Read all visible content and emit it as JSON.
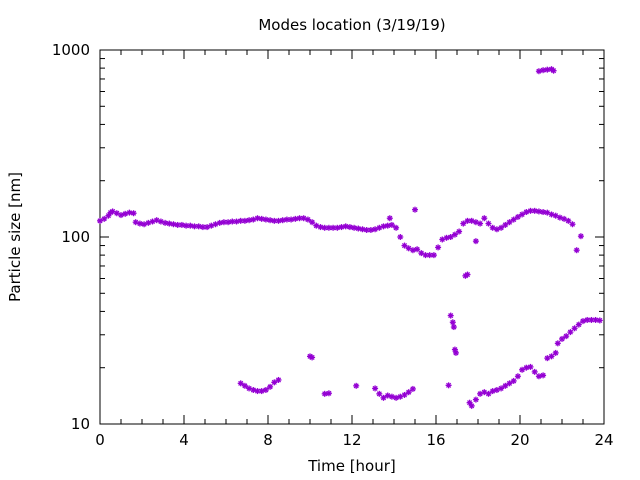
{
  "chart_data": {
    "type": "scatter",
    "title": "Modes location (3/19/19)",
    "xlabel": "Time [hour]",
    "ylabel": "Particle size [nm]",
    "xlim": [
      0,
      24
    ],
    "ylim": [
      10,
      1000
    ],
    "yscale": "log",
    "grid": false,
    "legend": "none",
    "marker_color": "#9400d3",
    "xticks": [
      {
        "v": 0,
        "label": "0"
      },
      {
        "v": 4,
        "label": "4"
      },
      {
        "v": 8,
        "label": "8"
      },
      {
        "v": 12,
        "label": "12"
      },
      {
        "v": 16,
        "label": "16"
      },
      {
        "v": 20,
        "label": "20"
      },
      {
        "v": 24,
        "label": "24"
      }
    ],
    "yticks": [
      {
        "v": 10,
        "label": "10"
      },
      {
        "v": 100,
        "label": "100"
      },
      {
        "v": 1000,
        "label": "1000"
      }
    ],
    "series": [
      {
        "points": [
          [
            0.0,
            122
          ],
          [
            0.2,
            125
          ],
          [
            0.4,
            130
          ],
          [
            0.5,
            135
          ],
          [
            0.6,
            137
          ],
          [
            0.8,
            134
          ],
          [
            1.0,
            131
          ],
          [
            1.2,
            133
          ],
          [
            1.4,
            135
          ],
          [
            1.6,
            134
          ],
          [
            1.7,
            120
          ],
          [
            1.9,
            118
          ],
          [
            2.1,
            117
          ],
          [
            2.3,
            119
          ],
          [
            2.5,
            121
          ],
          [
            2.7,
            123
          ],
          [
            2.9,
            121
          ],
          [
            3.1,
            119
          ],
          [
            3.3,
            118
          ],
          [
            3.5,
            117
          ],
          [
            3.7,
            116
          ],
          [
            3.9,
            116
          ],
          [
            4.1,
            115
          ],
          [
            4.3,
            115
          ],
          [
            4.5,
            114
          ],
          [
            4.7,
            114
          ],
          [
            4.9,
            113
          ],
          [
            5.1,
            113
          ],
          [
            5.3,
            115
          ],
          [
            5.5,
            117
          ],
          [
            5.7,
            119
          ],
          [
            5.9,
            120
          ],
          [
            6.1,
            120
          ],
          [
            6.3,
            121
          ],
          [
            6.5,
            121
          ],
          [
            6.7,
            122
          ],
          [
            6.9,
            122
          ],
          [
            7.1,
            123
          ],
          [
            7.3,
            124
          ],
          [
            7.5,
            126
          ],
          [
            7.7,
            125
          ],
          [
            7.9,
            124
          ],
          [
            8.1,
            123
          ],
          [
            8.3,
            122
          ],
          [
            8.5,
            122
          ],
          [
            8.7,
            123
          ],
          [
            8.9,
            124
          ],
          [
            9.1,
            124
          ],
          [
            9.3,
            125
          ],
          [
            9.5,
            126
          ],
          [
            9.7,
            126
          ],
          [
            9.9,
            124
          ],
          [
            10.1,
            120
          ],
          [
            10.3,
            115
          ],
          [
            10.5,
            113
          ],
          [
            10.7,
            112
          ],
          [
            10.9,
            112
          ],
          [
            11.1,
            112
          ],
          [
            11.3,
            112
          ],
          [
            11.5,
            113
          ],
          [
            11.7,
            114
          ],
          [
            11.9,
            113
          ],
          [
            12.1,
            112
          ],
          [
            12.3,
            111
          ],
          [
            12.5,
            110
          ],
          [
            12.7,
            109
          ],
          [
            12.9,
            109
          ],
          [
            13.1,
            110
          ],
          [
            13.3,
            112
          ],
          [
            13.5,
            114
          ],
          [
            13.7,
            115
          ],
          [
            13.8,
            126
          ],
          [
            13.9,
            116
          ],
          [
            14.1,
            112
          ],
          [
            14.3,
            100
          ],
          [
            14.5,
            90
          ],
          [
            14.7,
            87
          ],
          [
            14.9,
            85
          ],
          [
            15.0,
            140
          ],
          [
            15.1,
            86
          ],
          [
            15.3,
            82
          ],
          [
            15.5,
            80
          ],
          [
            15.7,
            80
          ],
          [
            15.9,
            80
          ],
          [
            16.1,
            88
          ],
          [
            16.3,
            97
          ],
          [
            16.5,
            99
          ],
          [
            16.7,
            100
          ],
          [
            16.9,
            103
          ],
          [
            17.1,
            107
          ],
          [
            17.3,
            118
          ],
          [
            17.5,
            122
          ],
          [
            17.7,
            122
          ],
          [
            17.9,
            120
          ],
          [
            18.1,
            118
          ],
          [
            18.3,
            126
          ],
          [
            18.5,
            118
          ],
          [
            18.7,
            112
          ],
          [
            18.9,
            110
          ],
          [
            19.1,
            112
          ],
          [
            19.3,
            116
          ],
          [
            19.5,
            120
          ],
          [
            19.7,
            124
          ],
          [
            19.9,
            128
          ],
          [
            20.1,
            132
          ],
          [
            20.3,
            136
          ],
          [
            20.5,
            138
          ],
          [
            20.7,
            138
          ],
          [
            20.9,
            137
          ],
          [
            21.1,
            136
          ],
          [
            21.3,
            135
          ],
          [
            21.5,
            132
          ],
          [
            21.7,
            130
          ],
          [
            21.9,
            127
          ],
          [
            22.1,
            125
          ],
          [
            22.3,
            122
          ],
          [
            22.5,
            117
          ],
          [
            22.7,
            85
          ],
          [
            22.9,
            101
          ],
          [
            17.9,
            95
          ],
          [
            20.9,
            770
          ],
          [
            21.1,
            780
          ],
          [
            21.3,
            785
          ],
          [
            21.5,
            790
          ],
          [
            21.6,
            775
          ],
          [
            6.7,
            16.5
          ],
          [
            6.9,
            16
          ],
          [
            7.1,
            15.5
          ],
          [
            7.3,
            15.2
          ],
          [
            7.5,
            15
          ],
          [
            7.7,
            15
          ],
          [
            7.9,
            15.2
          ],
          [
            8.1,
            15.8
          ],
          [
            8.3,
            16.7
          ],
          [
            8.5,
            17.2
          ],
          [
            10.0,
            23
          ],
          [
            10.1,
            22.7
          ],
          [
            10.7,
            14.5
          ],
          [
            10.9,
            14.6
          ],
          [
            12.2,
            16
          ],
          [
            13.1,
            15.5
          ],
          [
            13.3,
            14.5
          ],
          [
            13.5,
            13.8
          ],
          [
            13.7,
            14.2
          ],
          [
            13.9,
            14
          ],
          [
            14.1,
            13.8
          ],
          [
            14.3,
            14
          ],
          [
            14.5,
            14.3
          ],
          [
            14.7,
            14.8
          ],
          [
            14.9,
            15.4
          ],
          [
            16.6,
            16.1
          ],
          [
            16.7,
            38
          ],
          [
            16.8,
            35
          ],
          [
            16.85,
            33
          ],
          [
            16.9,
            25
          ],
          [
            16.95,
            24
          ],
          [
            17.4,
            62
          ],
          [
            17.5,
            63
          ],
          [
            17.6,
            13
          ],
          [
            17.7,
            12.5
          ],
          [
            17.9,
            13.5
          ],
          [
            18.1,
            14.5
          ],
          [
            18.3,
            14.8
          ],
          [
            18.5,
            14.5
          ],
          [
            18.7,
            15
          ],
          [
            18.9,
            15.2
          ],
          [
            19.1,
            15.5
          ],
          [
            19.3,
            16
          ],
          [
            19.5,
            16.5
          ],
          [
            19.7,
            17
          ],
          [
            19.9,
            18
          ],
          [
            20.1,
            19.5
          ],
          [
            20.3,
            20
          ],
          [
            20.5,
            20.2
          ],
          [
            20.7,
            19
          ],
          [
            20.9,
            18
          ],
          [
            21.1,
            18.2
          ],
          [
            21.3,
            22.5
          ],
          [
            21.5,
            23
          ],
          [
            21.7,
            24
          ],
          [
            21.8,
            27
          ],
          [
            22.0,
            28.5
          ],
          [
            22.2,
            29.5
          ],
          [
            22.4,
            31
          ],
          [
            22.6,
            32.5
          ],
          [
            22.8,
            34
          ],
          [
            23.0,
            35.5
          ],
          [
            23.2,
            36
          ],
          [
            23.4,
            36
          ],
          [
            23.6,
            36
          ],
          [
            23.8,
            35.8
          ]
        ]
      }
    ]
  }
}
